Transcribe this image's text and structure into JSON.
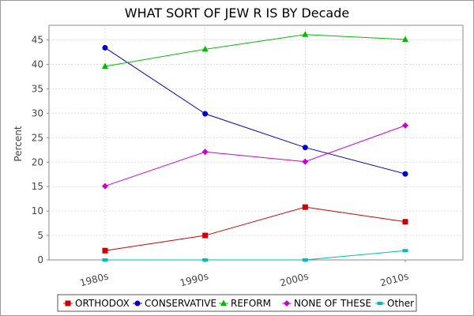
{
  "chart_data": {
    "type": "line",
    "title": "WHAT SORT OF JEW R IS BY Decade",
    "xlabel": "",
    "ylabel": "Percent",
    "categories": [
      "1980s",
      "1990s",
      "2000s",
      "2010s"
    ],
    "ylim": [
      0,
      48
    ],
    "yticks": [
      0,
      5,
      10,
      15,
      20,
      25,
      30,
      35,
      40,
      45
    ],
    "grid": true,
    "legend_position": "bottom",
    "series": [
      {
        "name": "ORTHODOX",
        "color": "#cc0000",
        "marker": "square",
        "values": [
          1.9,
          5.0,
          10.8,
          7.8
        ]
      },
      {
        "name": "CONSERVATIVE",
        "color": "#0000cc",
        "marker": "circle",
        "values": [
          43.4,
          29.9,
          23.0,
          17.6
        ]
      },
      {
        "name": "REFORM",
        "color": "#00bb00",
        "marker": "triangle",
        "values": [
          39.6,
          43.1,
          46.1,
          45.1
        ]
      },
      {
        "name": "NONE OF THESE",
        "color": "#cc00cc",
        "marker": "diamond",
        "values": [
          15.1,
          22.1,
          20.1,
          27.5
        ]
      },
      {
        "name": "Other",
        "color": "#00bbbb",
        "marker": "square-small",
        "values": [
          0.0,
          0.0,
          0.0,
          1.9
        ]
      }
    ]
  }
}
